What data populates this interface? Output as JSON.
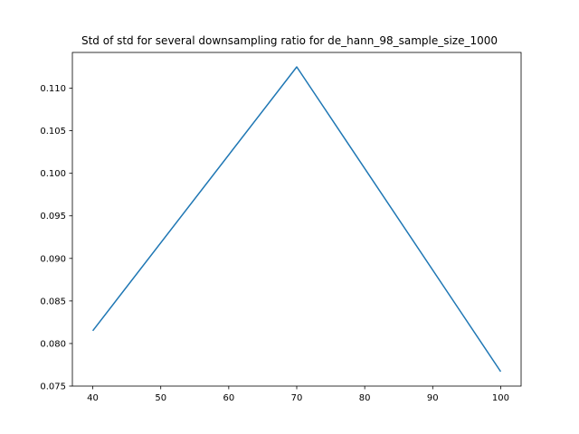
{
  "chart_data": {
    "type": "line",
    "title": "Std of std for several downsampling ratio for de_hann_98_sample_size_1000",
    "xlabel": "",
    "ylabel": "",
    "x": [
      40,
      70,
      100
    ],
    "series": [
      {
        "values": [
          0.0815,
          0.1125,
          0.0767
        ],
        "color": "#1f77b4"
      }
    ],
    "xlim": [
      37,
      103
    ],
    "ylim": [
      0.075,
      0.1142
    ],
    "xticks": [
      40,
      50,
      60,
      70,
      80,
      90,
      100
    ],
    "yticks": [
      0.075,
      0.08,
      0.085,
      0.09,
      0.095,
      0.1,
      0.105,
      0.11
    ],
    "ytick_labels": [
      "0.075",
      "0.080",
      "0.085",
      "0.090",
      "0.095",
      "0.100",
      "0.105",
      "0.110"
    ],
    "grid": false,
    "legend": false
  }
}
